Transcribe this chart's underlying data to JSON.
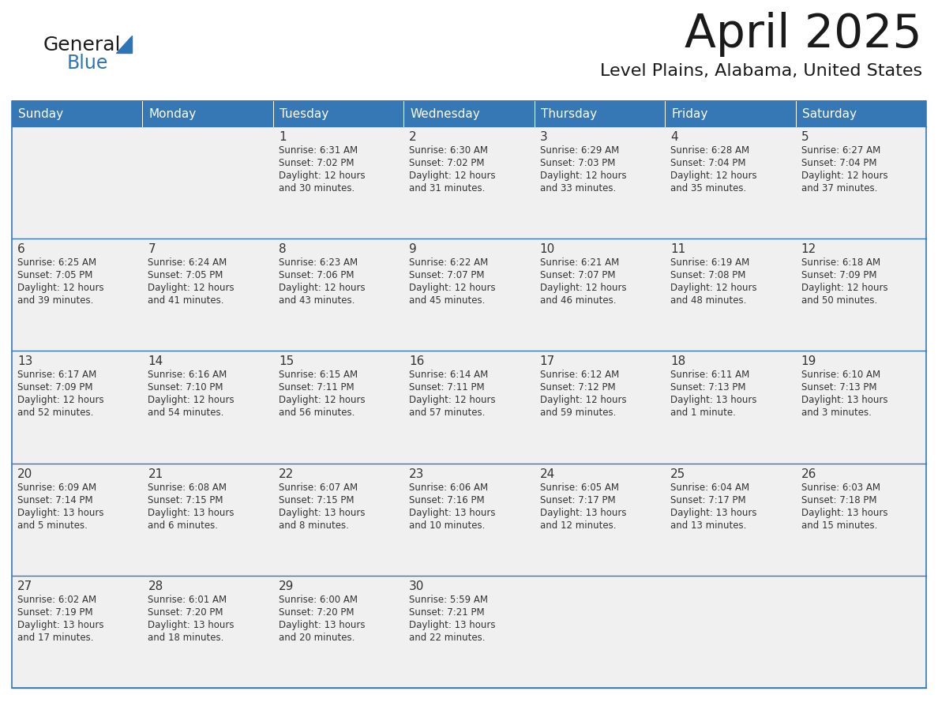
{
  "title": "April 2025",
  "subtitle": "Level Plains, Alabama, United States",
  "header_bg_color": "#3578B5",
  "header_text_color": "#FFFFFF",
  "cell_bg": "#F0F0F0",
  "text_color": "#333333",
  "border_color": "#3578B5",
  "line_color": "#4472C4",
  "days_of_week": [
    "Sunday",
    "Monday",
    "Tuesday",
    "Wednesday",
    "Thursday",
    "Friday",
    "Saturday"
  ],
  "weeks": [
    [
      {
        "day": "",
        "info": ""
      },
      {
        "day": "",
        "info": ""
      },
      {
        "day": "1",
        "info": "Sunrise: 6:31 AM\nSunset: 7:02 PM\nDaylight: 12 hours\nand 30 minutes."
      },
      {
        "day": "2",
        "info": "Sunrise: 6:30 AM\nSunset: 7:02 PM\nDaylight: 12 hours\nand 31 minutes."
      },
      {
        "day": "3",
        "info": "Sunrise: 6:29 AM\nSunset: 7:03 PM\nDaylight: 12 hours\nand 33 minutes."
      },
      {
        "day": "4",
        "info": "Sunrise: 6:28 AM\nSunset: 7:04 PM\nDaylight: 12 hours\nand 35 minutes."
      },
      {
        "day": "5",
        "info": "Sunrise: 6:27 AM\nSunset: 7:04 PM\nDaylight: 12 hours\nand 37 minutes."
      }
    ],
    [
      {
        "day": "6",
        "info": "Sunrise: 6:25 AM\nSunset: 7:05 PM\nDaylight: 12 hours\nand 39 minutes."
      },
      {
        "day": "7",
        "info": "Sunrise: 6:24 AM\nSunset: 7:05 PM\nDaylight: 12 hours\nand 41 minutes."
      },
      {
        "day": "8",
        "info": "Sunrise: 6:23 AM\nSunset: 7:06 PM\nDaylight: 12 hours\nand 43 minutes."
      },
      {
        "day": "9",
        "info": "Sunrise: 6:22 AM\nSunset: 7:07 PM\nDaylight: 12 hours\nand 45 minutes."
      },
      {
        "day": "10",
        "info": "Sunrise: 6:21 AM\nSunset: 7:07 PM\nDaylight: 12 hours\nand 46 minutes."
      },
      {
        "day": "11",
        "info": "Sunrise: 6:19 AM\nSunset: 7:08 PM\nDaylight: 12 hours\nand 48 minutes."
      },
      {
        "day": "12",
        "info": "Sunrise: 6:18 AM\nSunset: 7:09 PM\nDaylight: 12 hours\nand 50 minutes."
      }
    ],
    [
      {
        "day": "13",
        "info": "Sunrise: 6:17 AM\nSunset: 7:09 PM\nDaylight: 12 hours\nand 52 minutes."
      },
      {
        "day": "14",
        "info": "Sunrise: 6:16 AM\nSunset: 7:10 PM\nDaylight: 12 hours\nand 54 minutes."
      },
      {
        "day": "15",
        "info": "Sunrise: 6:15 AM\nSunset: 7:11 PM\nDaylight: 12 hours\nand 56 minutes."
      },
      {
        "day": "16",
        "info": "Sunrise: 6:14 AM\nSunset: 7:11 PM\nDaylight: 12 hours\nand 57 minutes."
      },
      {
        "day": "17",
        "info": "Sunrise: 6:12 AM\nSunset: 7:12 PM\nDaylight: 12 hours\nand 59 minutes."
      },
      {
        "day": "18",
        "info": "Sunrise: 6:11 AM\nSunset: 7:13 PM\nDaylight: 13 hours\nand 1 minute."
      },
      {
        "day": "19",
        "info": "Sunrise: 6:10 AM\nSunset: 7:13 PM\nDaylight: 13 hours\nand 3 minutes."
      }
    ],
    [
      {
        "day": "20",
        "info": "Sunrise: 6:09 AM\nSunset: 7:14 PM\nDaylight: 13 hours\nand 5 minutes."
      },
      {
        "day": "21",
        "info": "Sunrise: 6:08 AM\nSunset: 7:15 PM\nDaylight: 13 hours\nand 6 minutes."
      },
      {
        "day": "22",
        "info": "Sunrise: 6:07 AM\nSunset: 7:15 PM\nDaylight: 13 hours\nand 8 minutes."
      },
      {
        "day": "23",
        "info": "Sunrise: 6:06 AM\nSunset: 7:16 PM\nDaylight: 13 hours\nand 10 minutes."
      },
      {
        "day": "24",
        "info": "Sunrise: 6:05 AM\nSunset: 7:17 PM\nDaylight: 13 hours\nand 12 minutes."
      },
      {
        "day": "25",
        "info": "Sunrise: 6:04 AM\nSunset: 7:17 PM\nDaylight: 13 hours\nand 13 minutes."
      },
      {
        "day": "26",
        "info": "Sunrise: 6:03 AM\nSunset: 7:18 PM\nDaylight: 13 hours\nand 15 minutes."
      }
    ],
    [
      {
        "day": "27",
        "info": "Sunrise: 6:02 AM\nSunset: 7:19 PM\nDaylight: 13 hours\nand 17 minutes."
      },
      {
        "day": "28",
        "info": "Sunrise: 6:01 AM\nSunset: 7:20 PM\nDaylight: 13 hours\nand 18 minutes."
      },
      {
        "day": "29",
        "info": "Sunrise: 6:00 AM\nSunset: 7:20 PM\nDaylight: 13 hours\nand 20 minutes."
      },
      {
        "day": "30",
        "info": "Sunrise: 5:59 AM\nSunset: 7:21 PM\nDaylight: 13 hours\nand 22 minutes."
      },
      {
        "day": "",
        "info": ""
      },
      {
        "day": "",
        "info": ""
      },
      {
        "day": "",
        "info": ""
      }
    ]
  ]
}
